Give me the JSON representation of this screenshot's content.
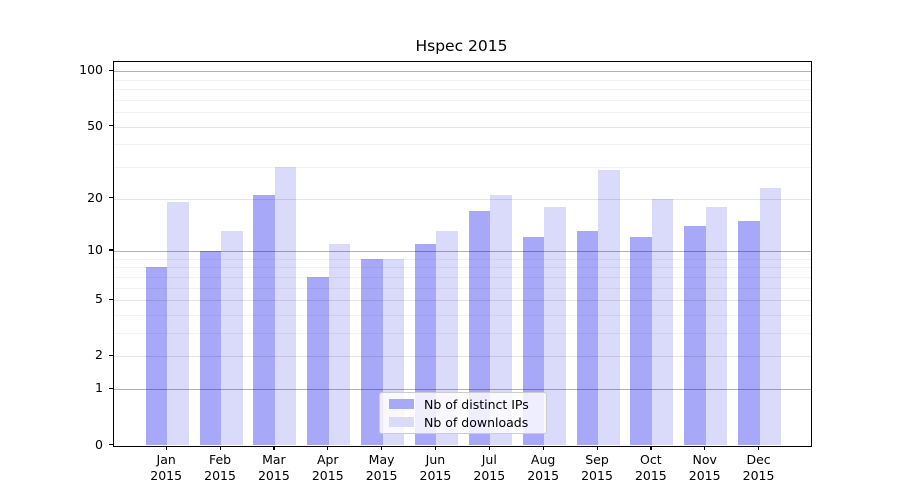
{
  "title": "Hspec 2015",
  "colors": {
    "ips": "#a8a8f8",
    "downloads": "#dadafa",
    "grid_major": "rgba(0,0,0,0.30)",
    "grid_minor_labeled": "rgba(0,0,0,0.10)",
    "grid_minor_faint": "rgba(0,0,0,0.05)",
    "axis": "#000000",
    "legend_border": "#cccccc"
  },
  "y_axis": {
    "tick_labels": [
      "100",
      "50",
      "20",
      "10",
      "5",
      "2",
      "1",
      "0"
    ],
    "tick_values": [
      100,
      50,
      20,
      10,
      5,
      2,
      1,
      0
    ]
  },
  "x_axis": {
    "months": [
      "Jan",
      "Feb",
      "Mar",
      "Apr",
      "May",
      "Jun",
      "Jul",
      "Aug",
      "Sep",
      "Oct",
      "Nov",
      "Dec"
    ],
    "year": "2015"
  },
  "legend": {
    "items": [
      {
        "label": "Nb of distinct IPs",
        "series": "ips"
      },
      {
        "label": "Nb of downloads",
        "series": "downloads"
      }
    ]
  },
  "chart_data": {
    "type": "bar",
    "title": "Hspec 2015",
    "xlabel": "",
    "ylabel": "",
    "categories": [
      "Jan 2015",
      "Feb 2015",
      "Mar 2015",
      "Apr 2015",
      "May 2015",
      "Jun 2015",
      "Jul 2015",
      "Aug 2015",
      "Sep 2015",
      "Oct 2015",
      "Nov 2015",
      "Dec 2015"
    ],
    "series": [
      {
        "name": "Nb of distinct IPs",
        "color": "#a8a8f8",
        "values": [
          8,
          10,
          21,
          7,
          9,
          11,
          17,
          12,
          13,
          12,
          14,
          15
        ]
      },
      {
        "name": "Nb of downloads",
        "color": "#dadafa",
        "values": [
          19,
          13,
          30,
          11,
          9,
          13,
          21,
          18,
          29,
          20,
          18,
          23
        ]
      }
    ],
    "yscale": "log1p",
    "ylim": [
      0,
      112
    ],
    "ytick_values": [
      0,
      1,
      2,
      5,
      10,
      20,
      50,
      100
    ],
    "grid": true,
    "legend_position": "lower center"
  }
}
